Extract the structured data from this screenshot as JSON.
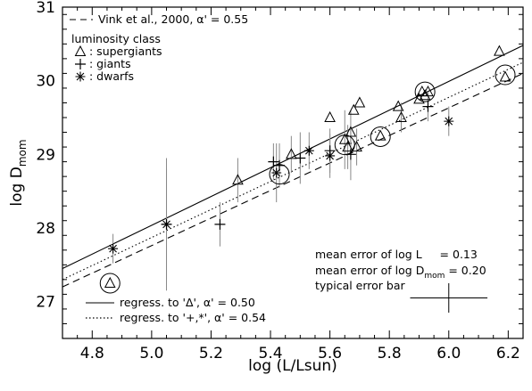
{
  "chart_data": {
    "type": "scatter",
    "title": "",
    "xlabel": "log (L/Lsun)",
    "ylabel_main": "log D",
    "ylabel_sub": "mom",
    "xlim": [
      4.7,
      6.25
    ],
    "ylim": [
      26.5,
      31.0
    ],
    "x_ticks": [
      4.8,
      5.0,
      5.2,
      5.4,
      5.6,
      5.8,
      6.0,
      6.2
    ],
    "x_tick_labels": [
      "4.8",
      "5.0",
      "5.2",
      "5.4",
      "5.6",
      "5.8",
      "6.0",
      "6.2"
    ],
    "y_ticks": [
      27,
      28,
      29,
      30,
      31
    ],
    "y_tick_labels": [
      "27",
      "28",
      "29",
      "30",
      "31"
    ],
    "grid": false,
    "legend": {
      "vink_text": "Vink et al., 2000, α' = 0.55",
      "class_title": "luminosity class",
      "items": [
        {
          "symbol": "triangle",
          "label": ": supergiants"
        },
        {
          "symbol": "plus",
          "label": ": giants"
        },
        {
          "symbol": "asterisk",
          "label": ": dwarfs"
        }
      ]
    },
    "regression_legend": [
      {
        "style": "solid",
        "label": "regress. to 'Δ',  α' = 0.50"
      },
      {
        "style": "dotted",
        "label": "regress. to '+,*', α' = 0.54"
      }
    ],
    "errors": {
      "line1": "mean error of log L     = 0.13",
      "line2_pre": "mean error of log D",
      "line2_sub": "mom",
      "line2_post": " = 0.20",
      "typical": "typical error bar",
      "typical_x": 6.0,
      "typical_y": 27.05,
      "typical_dx": 0.13,
      "typical_dy": 0.2
    },
    "lines": [
      {
        "name": "regression supergiants",
        "style": "solid",
        "x": [
          4.7,
          6.25
        ],
        "y": [
          27.45,
          30.48
        ]
      },
      {
        "name": "regression giants and dwarfs",
        "style": "dotted",
        "x": [
          4.7,
          6.25
        ],
        "y": [
          27.3,
          30.25
        ]
      },
      {
        "name": "Vink et al., 2000",
        "style": "dashed",
        "x": [
          4.7,
          6.25
        ],
        "y": [
          27.2,
          30.1
        ]
      }
    ],
    "series": [
      {
        "symbol": "triangle",
        "points": [
          {
            "x": 4.86,
            "y": 27.25,
            "err": 0.0
          },
          {
            "x": 5.29,
            "y": 28.65,
            "err": 0.3
          },
          {
            "x": 5.47,
            "y": 29.0,
            "err": 0.25
          },
          {
            "x": 5.6,
            "y": 29.5,
            "err": 0.0
          },
          {
            "x": 5.65,
            "y": 29.2,
            "err": 0.4
          },
          {
            "x": 5.66,
            "y": 29.1,
            "err": 0.3
          },
          {
            "x": 5.67,
            "y": 29.3,
            "err": 0.3
          },
          {
            "x": 5.68,
            "y": 29.6,
            "err": 0.0
          },
          {
            "x": 5.69,
            "y": 29.1,
            "err": 0.25
          },
          {
            "x": 5.7,
            "y": 29.7,
            "err": 0.0
          },
          {
            "x": 5.77,
            "y": 29.25,
            "err": 0.0
          },
          {
            "x": 5.83,
            "y": 29.65,
            "err": 0.0
          },
          {
            "x": 5.84,
            "y": 29.5,
            "err": 0.2
          },
          {
            "x": 5.9,
            "y": 29.75,
            "err": 0.0
          },
          {
            "x": 5.91,
            "y": 29.85,
            "err": 0.0
          },
          {
            "x": 5.92,
            "y": 29.8,
            "err": 0.0
          },
          {
            "x": 5.93,
            "y": 29.85,
            "err": 0.0
          },
          {
            "x": 6.17,
            "y": 30.4,
            "err": 0.0
          },
          {
            "x": 6.19,
            "y": 30.05,
            "err": 0.0
          }
        ]
      },
      {
        "symbol": "plus",
        "points": [
          {
            "x": 5.05,
            "y": 28.05,
            "err": 0.75
          },
          {
            "x": 5.23,
            "y": 28.05,
            "err": 0.3
          },
          {
            "x": 5.41,
            "y": 28.9,
            "err": 0.25
          },
          {
            "x": 5.43,
            "y": 28.85,
            "err": 0.3
          },
          {
            "x": 5.5,
            "y": 28.95,
            "err": 0.35
          },
          {
            "x": 5.6,
            "y": 29.05,
            "err": 0.3
          },
          {
            "x": 5.67,
            "y": 29.0,
            "err": 0.35
          },
          {
            "x": 5.93,
            "y": 29.65,
            "err": 0.2
          }
        ]
      },
      {
        "symbol": "asterisk",
        "points": [
          {
            "x": 4.87,
            "y": 27.72,
            "err": 0.2
          },
          {
            "x": 5.05,
            "y": 28.05,
            "err": 0.9
          },
          {
            "x": 5.42,
            "y": 28.75,
            "err": 0.4
          },
          {
            "x": 5.53,
            "y": 29.05,
            "err": 0.25
          },
          {
            "x": 5.6,
            "y": 28.98,
            "err": 0.3
          },
          {
            "x": 6.0,
            "y": 29.45,
            "err": 0.2
          }
        ]
      }
    ],
    "circled": [
      {
        "x": 4.86,
        "y": 27.25
      },
      {
        "x": 5.43,
        "y": 28.73
      },
      {
        "x": 5.65,
        "y": 29.13
      },
      {
        "x": 5.77,
        "y": 29.24
      },
      {
        "x": 5.92,
        "y": 29.85
      },
      {
        "x": 6.19,
        "y": 30.08
      }
    ]
  }
}
